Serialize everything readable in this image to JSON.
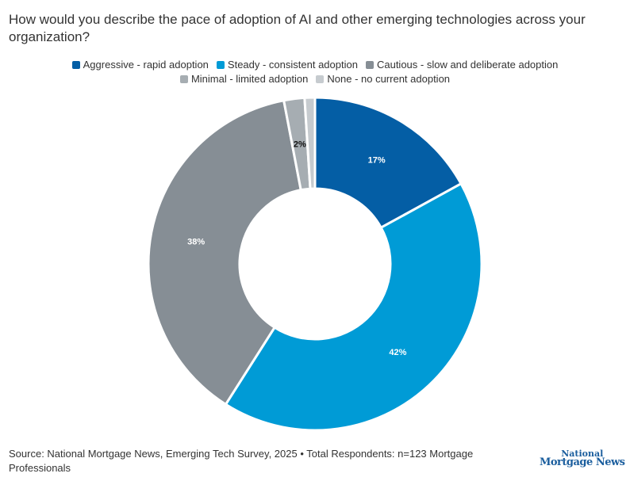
{
  "chart_data": {
    "type": "pie",
    "donut": true,
    "title": "How would you describe the pace of adoption of AI and other emerging technologies across your organization?",
    "categories": [
      "Aggressive - rapid adoption",
      "Steady - consistent adoption",
      "Cautious - slow and deliberate adoption",
      "Minimal - limited adoption",
      "None - no current adoption"
    ],
    "values": [
      17,
      42,
      38,
      2,
      1
    ],
    "data_labels": [
      "17%",
      "42%",
      "38%",
      "2%",
      ""
    ],
    "colors": [
      "#045ea5",
      "#009bd6",
      "#868e95",
      "#a6adb2",
      "#c6cbcf"
    ],
    "legend_position": "top"
  },
  "source": "Source: National Mortgage News, Emerging Tech Survey, 2025 • Total Respondents: n=123 Mortgage Professionals",
  "logo": {
    "line1": "National",
    "line2": "Mortgage News"
  }
}
